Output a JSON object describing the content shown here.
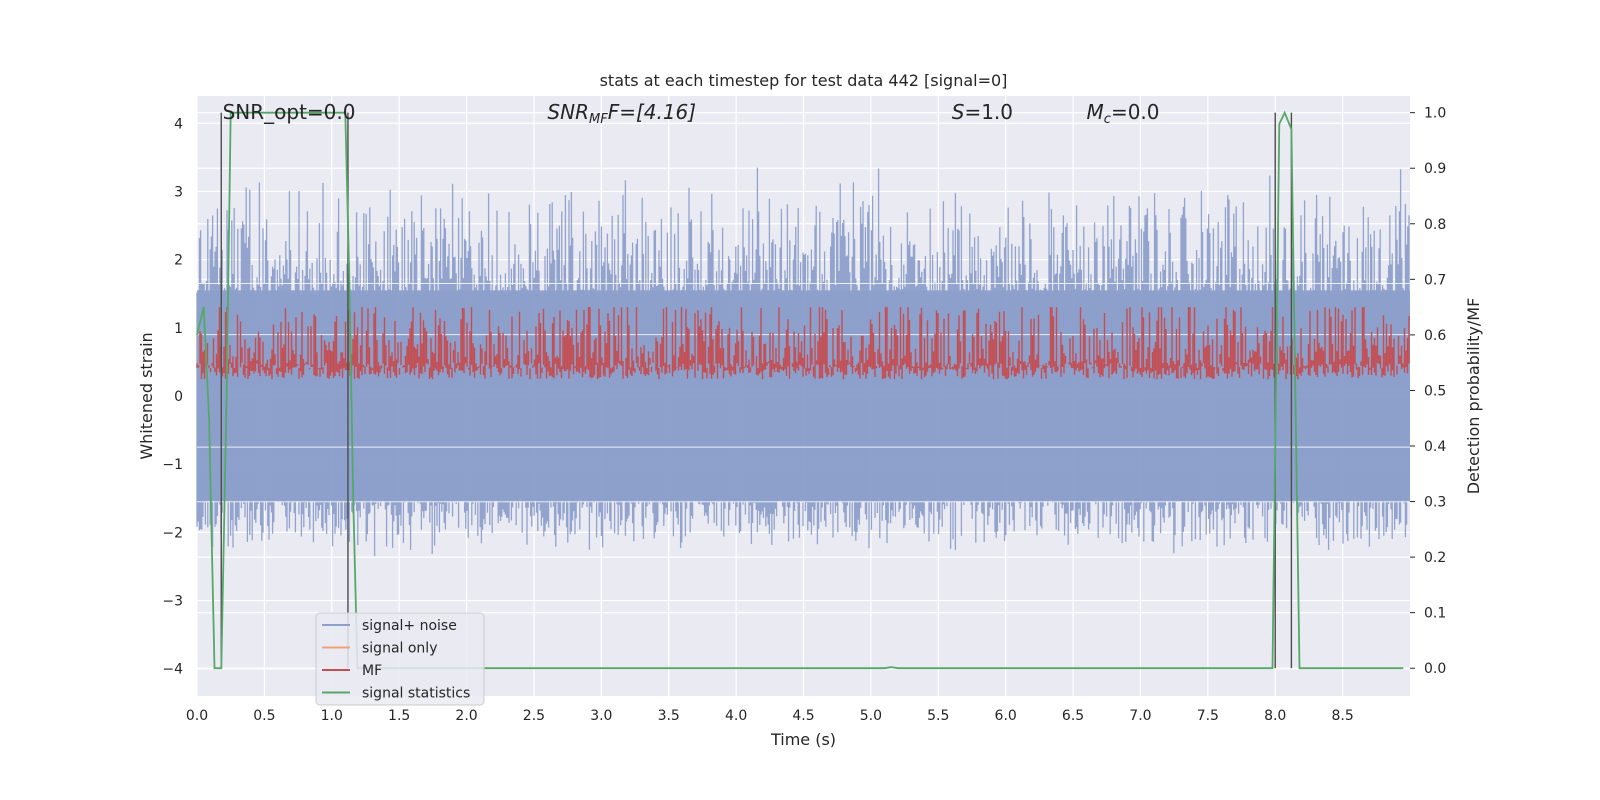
{
  "chart_data": {
    "type": "line",
    "title": "stats at each timestep for test data 442 [signal=0]",
    "xlabel": "Time (s)",
    "ylabel_left": "Whitened strain",
    "ylabel_right": "Detection probability/MF",
    "xlim": [
      0,
      9.0
    ],
    "ylim_left": [
      -4.4,
      4.4
    ],
    "ylim_right": [
      -0.05,
      1.03
    ],
    "xticks": [
      "0.0",
      "0.5",
      "1.0",
      "1.5",
      "2.0",
      "2.5",
      "3.0",
      "3.5",
      "4.0",
      "4.5",
      "5.0",
      "5.5",
      "6.0",
      "6.5",
      "7.0",
      "7.5",
      "8.0",
      "8.5"
    ],
    "yticks_left": [
      "4",
      "3",
      "2",
      "1",
      "0",
      "−1",
      "−2",
      "−3",
      "−4"
    ],
    "yticks_right": [
      "1.0",
      "0.9",
      "0.8",
      "0.7",
      "0.6",
      "0.5",
      "0.4",
      "0.3",
      "0.2",
      "0.1",
      "0.0"
    ],
    "grid": true,
    "legend_position": "lower-left",
    "annotations": [
      {
        "text": "SNR_opt=0.0",
        "x": 0.19,
        "y": 4.15
      },
      {
        "text": "SNR",
        "sub": "MF",
        "rest": "F=[4.16]",
        "x": 2.6,
        "y": 4.15
      },
      {
        "text": "S",
        "rest": "=1.0",
        "x": 5.6,
        "y": 4.15
      },
      {
        "text": "M",
        "sub": "c",
        "rest": "=0.0",
        "x": 6.6,
        "y": 4.15
      }
    ],
    "vlines": [
      0.18,
      1.12,
      8.0,
      8.12
    ],
    "series": [
      {
        "name": "signal+ noise",
        "color": "#8da0cb",
        "axis": "left",
        "style": "noise",
        "envelope": [
          -2.2,
          3.0
        ]
      },
      {
        "name": "signal only",
        "color": "#f0a17a",
        "axis": "left",
        "style": "flat"
      },
      {
        "name": "MF",
        "color": "#c44e52",
        "axis": "right",
        "style": "band",
        "range": [
          0.52,
          0.62
        ]
      },
      {
        "name": "signal statistics",
        "color": "#55a868",
        "axis": "right",
        "x": [
          0.0,
          0.05,
          0.09,
          0.13,
          0.18,
          0.22,
          0.25,
          0.28,
          1.1,
          1.13,
          1.16,
          1.19,
          5.1,
          5.15,
          5.2,
          7.98,
          8.03,
          8.07,
          8.12,
          8.18,
          8.95
        ],
        "y": [
          0.6,
          0.65,
          0.45,
          0.0,
          0.0,
          0.5,
          1.0,
          1.0,
          1.0,
          0.7,
          0.3,
          0.0,
          0.0,
          0.002,
          0.0,
          0.0,
          0.98,
          1.0,
          0.97,
          0.0,
          0.0
        ]
      }
    ]
  }
}
